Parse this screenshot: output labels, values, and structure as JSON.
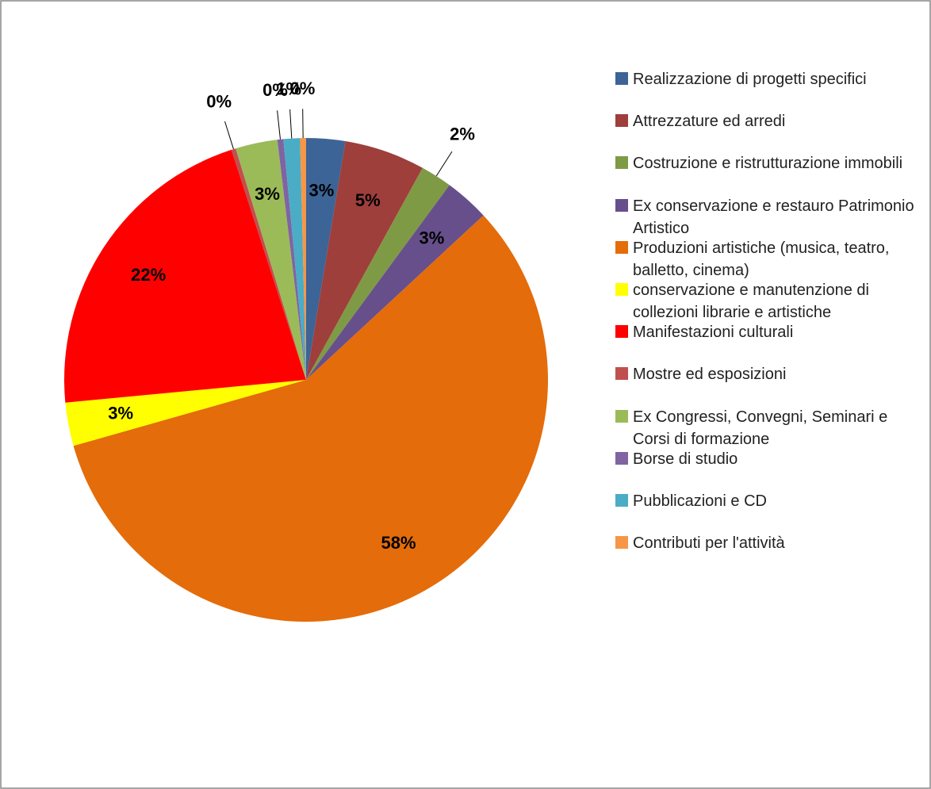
{
  "chart_data": {
    "type": "pie",
    "categories": [
      "Realizzazione di progetti specifici",
      "Attrezzature ed arredi",
      "Costruzione e ristrutturazione immobili",
      "Ex conservazione e restauro Patrimonio Artistico",
      "Produzioni artistiche (musica, teatro, balletto, cinema)",
      "conservazione e manutenzione di collezioni librarie e artistiche",
      "Manifestazioni culturali",
      "Mostre ed esposizioni",
      "Ex Congressi, Convegni, Seminari e Corsi di formazione",
      "Borse di studio",
      "Pubblicazioni e CD",
      "Contributi per l'attività"
    ],
    "values": [
      2.6,
      5.4,
      2.1,
      3.0,
      57.5,
      2.9,
      21.5,
      0.3,
      2.8,
      0.4,
      1.1,
      0.4
    ],
    "value_labels": [
      "3%",
      "5%",
      "2%",
      "3%",
      "58%",
      "3%",
      "22%",
      "0%",
      "3%",
      "0%",
      "1%",
      "0%"
    ],
    "colors": [
      "#3c6497",
      "#9e3f3c",
      "#7f9a45",
      "#674f8b",
      "#e46c0a",
      "#ffff00",
      "#ff0000",
      "#c0504d",
      "#9bbb59",
      "#8064a2",
      "#4bacc6",
      "#f79646"
    ],
    "legend": "right"
  }
}
